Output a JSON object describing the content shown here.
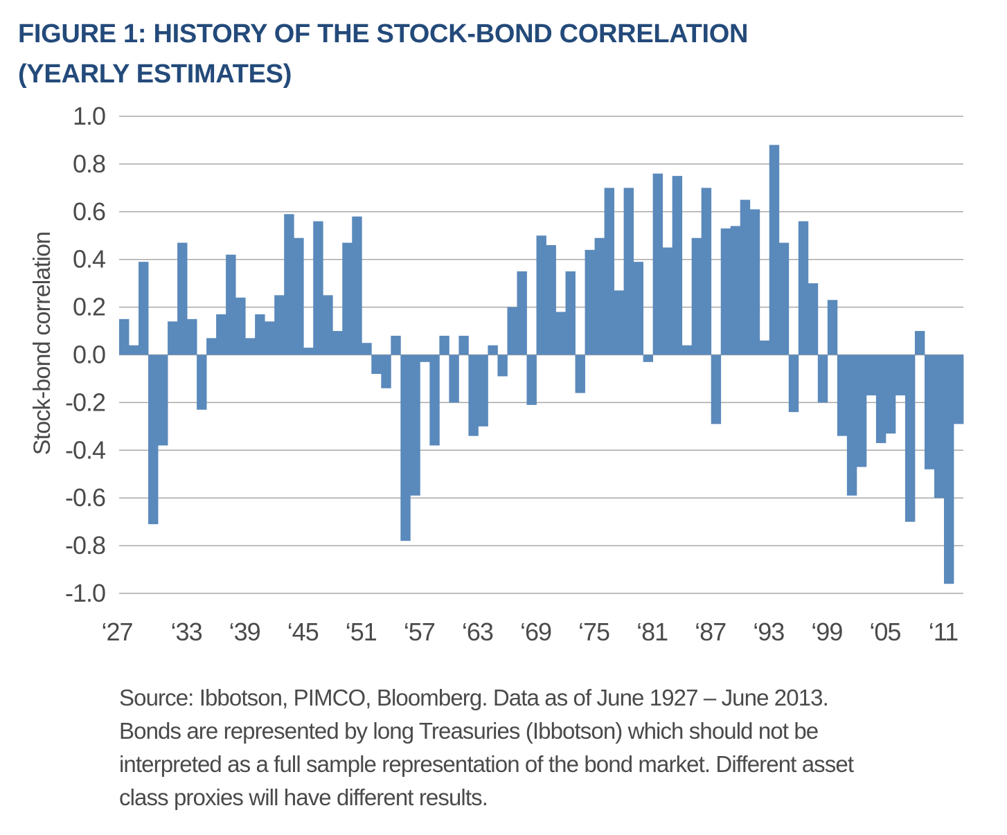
{
  "title_lines": [
    "FIGURE 1: HISTORY OF THE STOCK-BOND CORRELATION",
    "(YEARLY ESTIMATES)"
  ],
  "source_lines": [
    "Source: Ibbotson, PIMCO, Bloomberg. Data as of June 1927 – June 2013.",
    "Bonds are represented by long Treasuries (Ibbotson) which should not be",
    "interpreted as a full sample representation of the bond market. Different asset",
    "class proxies will have different results."
  ],
  "colors": {
    "title": "#234a7a",
    "bar": "#5a89bb",
    "grid": "#a8a8a8",
    "text": "#4a4a4a"
  },
  "chart_data": {
    "type": "bar",
    "title": "",
    "xlabel": "",
    "ylabel": "Stock-bond correlation",
    "ylim": [
      -1.0,
      1.0
    ],
    "grid": true,
    "y_ticks": [
      "1.0",
      "0.8",
      "0.6",
      "0.4",
      "0.2",
      "0.0",
      "-0.2",
      "-0.4",
      "-0.6",
      "-0.8",
      "-1.0"
    ],
    "x_tick_labels": [
      "‘27",
      "‘33",
      "‘39",
      "‘45",
      "‘51",
      "‘57",
      "‘63",
      "‘69",
      "‘75",
      "‘81",
      "‘87",
      "‘93",
      "‘99",
      "‘05",
      "‘11"
    ],
    "categories": [
      1927,
      1928,
      1929,
      1930,
      1931,
      1932,
      1933,
      1934,
      1935,
      1936,
      1937,
      1938,
      1939,
      1940,
      1941,
      1942,
      1943,
      1944,
      1945,
      1946,
      1947,
      1948,
      1949,
      1950,
      1951,
      1952,
      1953,
      1954,
      1955,
      1956,
      1957,
      1958,
      1959,
      1960,
      1961,
      1962,
      1963,
      1964,
      1965,
      1966,
      1967,
      1968,
      1969,
      1970,
      1971,
      1972,
      1973,
      1974,
      1975,
      1976,
      1977,
      1978,
      1979,
      1980,
      1981,
      1982,
      1983,
      1984,
      1985,
      1986,
      1987,
      1988,
      1989,
      1990,
      1991,
      1992,
      1993,
      1994,
      1995,
      1996,
      1997,
      1998,
      1999,
      2000,
      2001,
      2002,
      2003,
      2004,
      2005,
      2006,
      2007,
      2008,
      2009,
      2010,
      2011,
      2012,
      2013
    ],
    "values": [
      0.15,
      0.04,
      0.39,
      -0.71,
      -0.38,
      0.14,
      0.47,
      0.15,
      -0.23,
      0.07,
      0.17,
      0.42,
      0.24,
      0.07,
      0.17,
      0.14,
      0.25,
      0.59,
      0.49,
      0.03,
      0.56,
      0.25,
      0.1,
      0.47,
      0.58,
      0.05,
      -0.08,
      -0.14,
      0.08,
      -0.78,
      -0.59,
      -0.03,
      -0.38,
      0.08,
      -0.2,
      0.08,
      -0.34,
      -0.3,
      0.04,
      -0.09,
      0.2,
      0.35,
      -0.21,
      0.5,
      0.46,
      0.18,
      0.35,
      -0.16,
      0.44,
      0.49,
      0.7,
      0.27,
      0.7,
      0.39,
      -0.03,
      0.76,
      0.45,
      0.75,
      0.04,
      0.49,
      0.7,
      -0.29,
      0.53,
      0.54,
      0.65,
      0.61,
      0.06,
      0.88,
      0.47,
      -0.24,
      0.56,
      0.3,
      -0.2,
      0.23,
      -0.34,
      -0.59,
      -0.47,
      -0.17,
      -0.37,
      -0.33,
      -0.17,
      -0.7,
      0.1,
      -0.48,
      -0.6,
      -0.96,
      -0.29
    ]
  }
}
